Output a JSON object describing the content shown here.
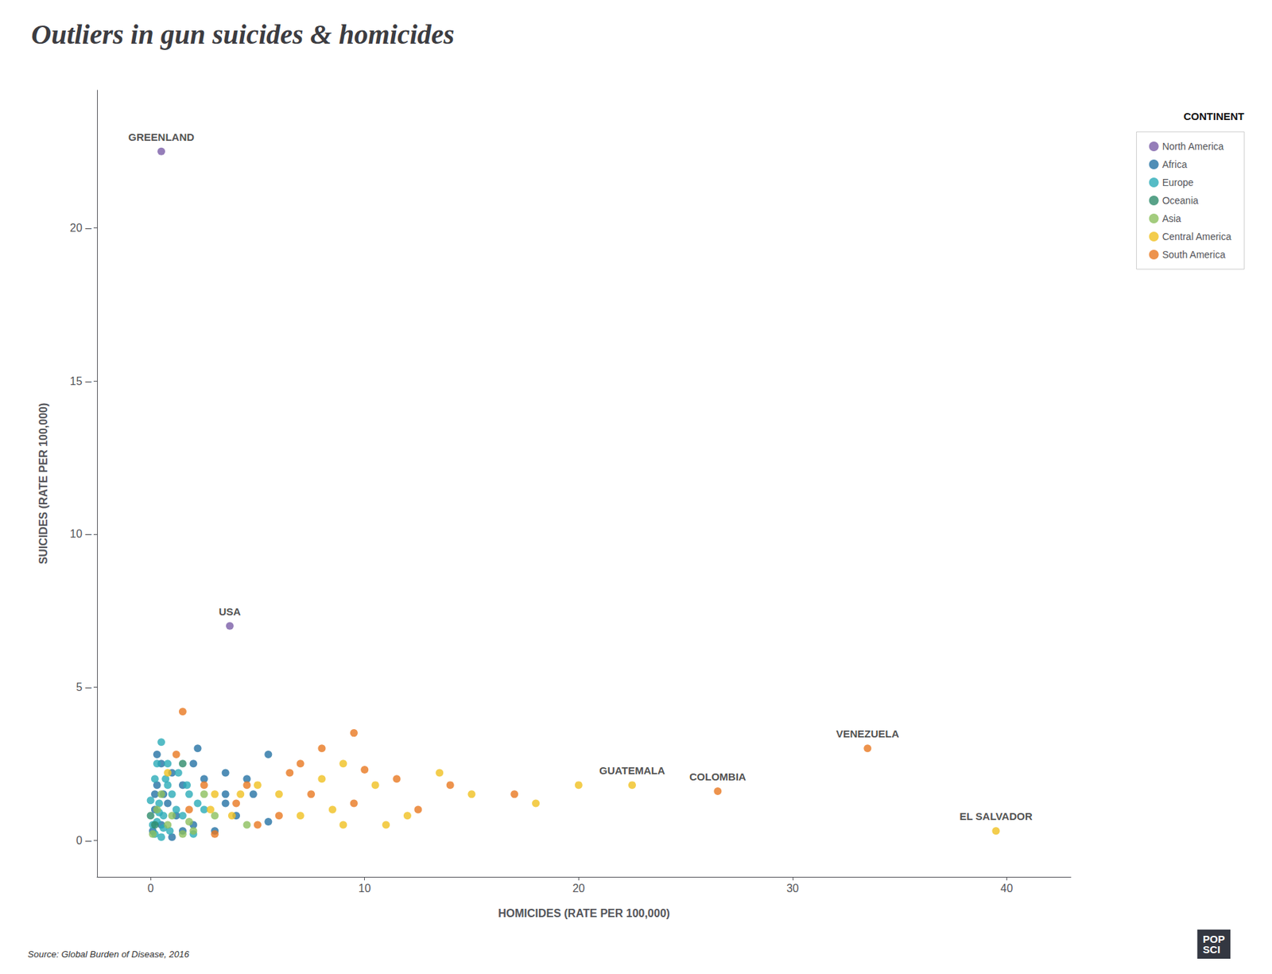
{
  "chart_data": {
    "type": "scatter",
    "title": "Outliers in gun suicides & homicides",
    "xlabel": "HOMICIDES (RATE PER 100,000)",
    "ylabel": "SUICIDES (RATE PER 100,000)",
    "source": "Source: Global Burden of Disease, 2016",
    "logo_text": "POP\nSCI",
    "legend_title": "CONTINENT",
    "legend": "upper right",
    "grid": false,
    "xlim": [
      -2.5,
      43
    ],
    "ylim": [
      -1.2,
      24.5
    ],
    "xticks": [
      0,
      10,
      20,
      30,
      40
    ],
    "yticks": [
      {
        "value": 0,
        "label": "0 –"
      },
      {
        "value": 5,
        "label": "5 –"
      },
      {
        "value": 10,
        "label": "10 –"
      },
      {
        "value": 15,
        "label": "15 –"
      },
      {
        "value": 20,
        "label": "20 –"
      }
    ],
    "series": [
      {
        "name": "North America",
        "color": "#7B5EA7",
        "x": [
          0.5,
          3.7
        ],
        "values": [
          22.5,
          7.0
        ]
      },
      {
        "name": "Africa",
        "color": "#2472A4",
        "x": [
          0.5,
          0.3,
          1.0,
          1.5,
          2.0,
          2.5,
          0.2,
          0.8,
          3.5,
          4.5,
          1.2,
          2.0,
          0.5,
          0.2,
          0.1,
          1.5,
          3.0,
          3.5,
          4.0,
          3.5,
          0.3,
          5.5,
          4.8,
          2.2,
          1.0,
          0.6,
          5.5
        ],
        "values": [
          2.5,
          2.8,
          2.2,
          1.8,
          2.5,
          2.0,
          1.5,
          1.2,
          1.5,
          2.0,
          0.8,
          0.5,
          0.5,
          1.0,
          0.3,
          0.3,
          0.3,
          2.2,
          0.8,
          1.2,
          1.8,
          2.8,
          1.5,
          3.0,
          0.1,
          1.5,
          0.6
        ]
      },
      {
        "name": "Europe",
        "color": "#2AABB8",
        "x": [
          0.5,
          0.3,
          0.2,
          0.8,
          1.0,
          0.4,
          0.6,
          0.1,
          1.5,
          2.5,
          0.2,
          0.9,
          0.0,
          0.7,
          1.8,
          0.3,
          1.2,
          0.5,
          2.0,
          1.3,
          0.6,
          1.7,
          0.4,
          2.2,
          0.8
        ],
        "values": [
          3.2,
          2.5,
          2.0,
          1.8,
          1.5,
          1.2,
          0.8,
          0.5,
          0.8,
          1.0,
          0.2,
          0.3,
          1.3,
          2.0,
          1.5,
          0.6,
          1.0,
          0.1,
          0.2,
          2.2,
          0.4,
          1.8,
          0.9,
          1.2,
          2.5
        ]
      },
      {
        "name": "Oceania",
        "color": "#2E8B6A",
        "x": [
          0.0,
          0.2,
          1.5
        ],
        "values": [
          0.8,
          0.5,
          2.5
        ]
      },
      {
        "name": "Asia",
        "color": "#8CBF5E",
        "x": [
          0.5,
          0.3,
          1.0,
          0.8,
          2.0,
          4.5,
          1.5,
          0.1,
          3.0,
          2.5,
          1.8
        ],
        "values": [
          1.5,
          1.0,
          0.8,
          0.5,
          0.3,
          0.5,
          0.2,
          0.2,
          0.8,
          1.5,
          0.6
        ]
      },
      {
        "name": "Central America",
        "color": "#F0C020",
        "x": [
          0.8,
          3.0,
          5.0,
          6.0,
          7.0,
          8.0,
          9.0,
          10.5,
          11.0,
          12.0,
          15.0,
          18.0,
          8.5,
          9.0,
          2.8,
          3.8,
          20.0,
          4.2,
          13.5,
          22.5,
          39.5
        ],
        "values": [
          2.2,
          1.5,
          1.8,
          1.5,
          0.8,
          2.0,
          2.5,
          1.8,
          0.5,
          0.8,
          1.5,
          1.2,
          1.0,
          0.5,
          1.0,
          0.8,
          1.8,
          1.5,
          2.2,
          1.8,
          0.3
        ]
      },
      {
        "name": "South America",
        "color": "#E87820",
        "x": [
          1.5,
          1.2,
          2.5,
          4.0,
          1.8,
          7.5,
          9.5,
          11.5,
          14.0,
          17.0,
          6.5,
          10.0,
          12.5,
          9.5,
          7.0,
          5.0,
          3.0,
          4.5,
          8.0,
          6.0,
          26.5,
          33.5
        ],
        "values": [
          4.2,
          2.8,
          1.8,
          1.2,
          1.0,
          1.5,
          1.2,
          2.0,
          1.8,
          1.5,
          2.2,
          2.3,
          1.0,
          3.5,
          2.5,
          0.5,
          0.2,
          1.8,
          3.0,
          0.8,
          1.6,
          3.0
        ]
      }
    ],
    "annotations": [
      {
        "text": "GREENLAND",
        "x": 0.5,
        "y": 22.5
      },
      {
        "text": "USA",
        "x": 3.7,
        "y": 7.0
      },
      {
        "text": "GUATEMALA",
        "x": 22.5,
        "y": 1.8
      },
      {
        "text": "COLOMBIA",
        "x": 26.5,
        "y": 1.6
      },
      {
        "text": "VENEZUELA",
        "x": 33.5,
        "y": 3.0
      },
      {
        "text": "EL SALVADOR",
        "x": 39.5,
        "y": 0.3
      }
    ]
  }
}
